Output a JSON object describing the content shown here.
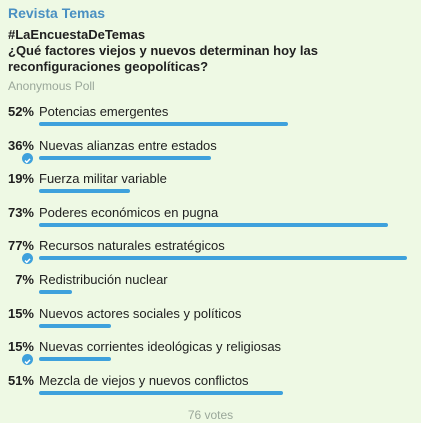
{
  "header": {
    "title": "Revista Temas"
  },
  "poll": {
    "hashtag": "#LaEncuestaDeTemas",
    "question": "¿Qué factores viejos y nuevos determinan hoy las reconfiguraciones geopolíticas?",
    "kind": "Anonymous Poll",
    "options": [
      {
        "percent": {
          "value": 52,
          "label": "52%"
        },
        "text": "Potencias emergentes",
        "chosen": false
      },
      {
        "percent": {
          "value": 36,
          "label": "36%"
        },
        "text": "Nuevas alianzas entre estados",
        "chosen": true
      },
      {
        "percent": {
          "value": 19,
          "label": "19%"
        },
        "text": "Fuerza militar variable",
        "chosen": false
      },
      {
        "percent": {
          "value": 73,
          "label": "73%"
        },
        "text": "Poderes económicos en pugna",
        "chosen": false
      },
      {
        "percent": {
          "value": 77,
          "label": "77%"
        },
        "text": "Recursos naturales estratégicos",
        "chosen": true
      },
      {
        "percent": {
          "value": 7,
          "label": "7%"
        },
        "text": "Redistribución nuclear",
        "chosen": false
      },
      {
        "percent": {
          "value": 15,
          "label": "15%"
        },
        "text": "Nuevos actores sociales y políticos",
        "chosen": false
      },
      {
        "percent": {
          "value": 15,
          "label": "15%"
        },
        "text": "Nuevas corrientes ideológicas y religiosas",
        "chosen": true
      },
      {
        "percent": {
          "value": 51,
          "label": "51%"
        },
        "text": "Mezcla de viejos y nuevos conflictos",
        "chosen": false
      }
    ],
    "votes": "76 votes"
  }
}
